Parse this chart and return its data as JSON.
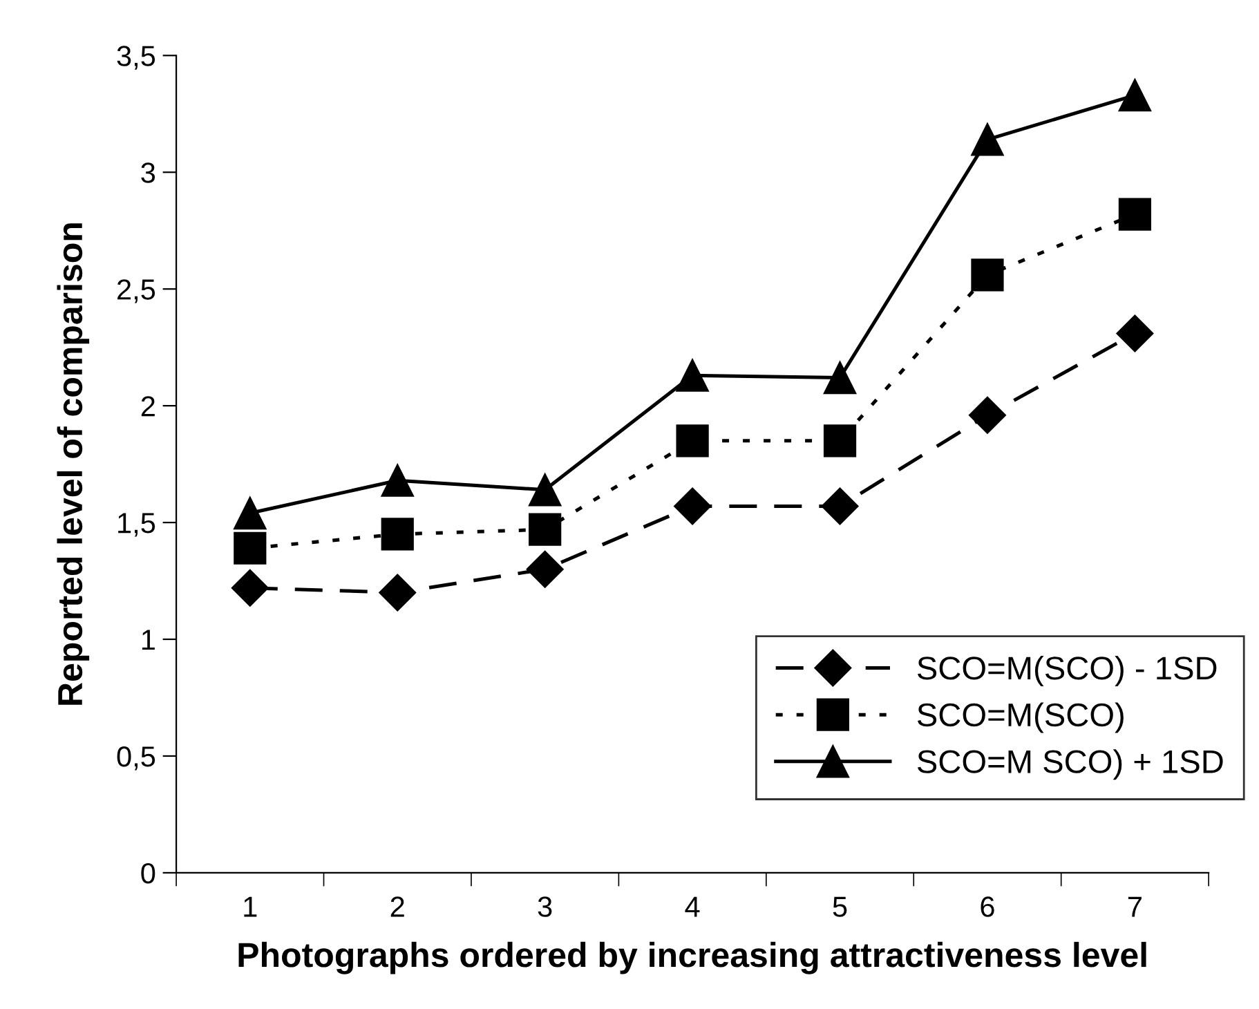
{
  "chart_data": {
    "type": "line",
    "xlabel": "Photographs ordered by increasing attractiveness level",
    "ylabel": "Reported level of comparison",
    "categories": [
      "1",
      "2",
      "3",
      "4",
      "5",
      "6",
      "7"
    ],
    "series": [
      {
        "name": "SCO=M(SCO) - 1SD",
        "color": "#000000",
        "marker": "diamond",
        "line_style": "dashed",
        "values": [
          1.22,
          1.2,
          1.3,
          1.57,
          1.57,
          1.96,
          2.31
        ]
      },
      {
        "name": "SCO=M(SCO)",
        "color": "#000000",
        "marker": "square",
        "line_style": "dotted",
        "values": [
          1.39,
          1.45,
          1.47,
          1.85,
          1.85,
          2.56,
          2.82
        ]
      },
      {
        "name": "SCO=M SCO) + 1SD",
        "color": "#000000",
        "marker": "triangle",
        "line_style": "solid",
        "values": [
          1.54,
          1.68,
          1.64,
          2.13,
          2.12,
          3.14,
          3.33
        ]
      }
    ],
    "ylim": [
      0,
      3.5
    ],
    "yticks": [
      0,
      {
        "value": 0.5,
        "label": "0,5"
      },
      1,
      {
        "value": 1.5,
        "label": "1,5"
      },
      2,
      {
        "value": 2.5,
        "label": "2,5"
      },
      3,
      {
        "value": 3.5,
        "label": "3,5"
      }
    ],
    "grid": false,
    "legend": "bottom right"
  }
}
